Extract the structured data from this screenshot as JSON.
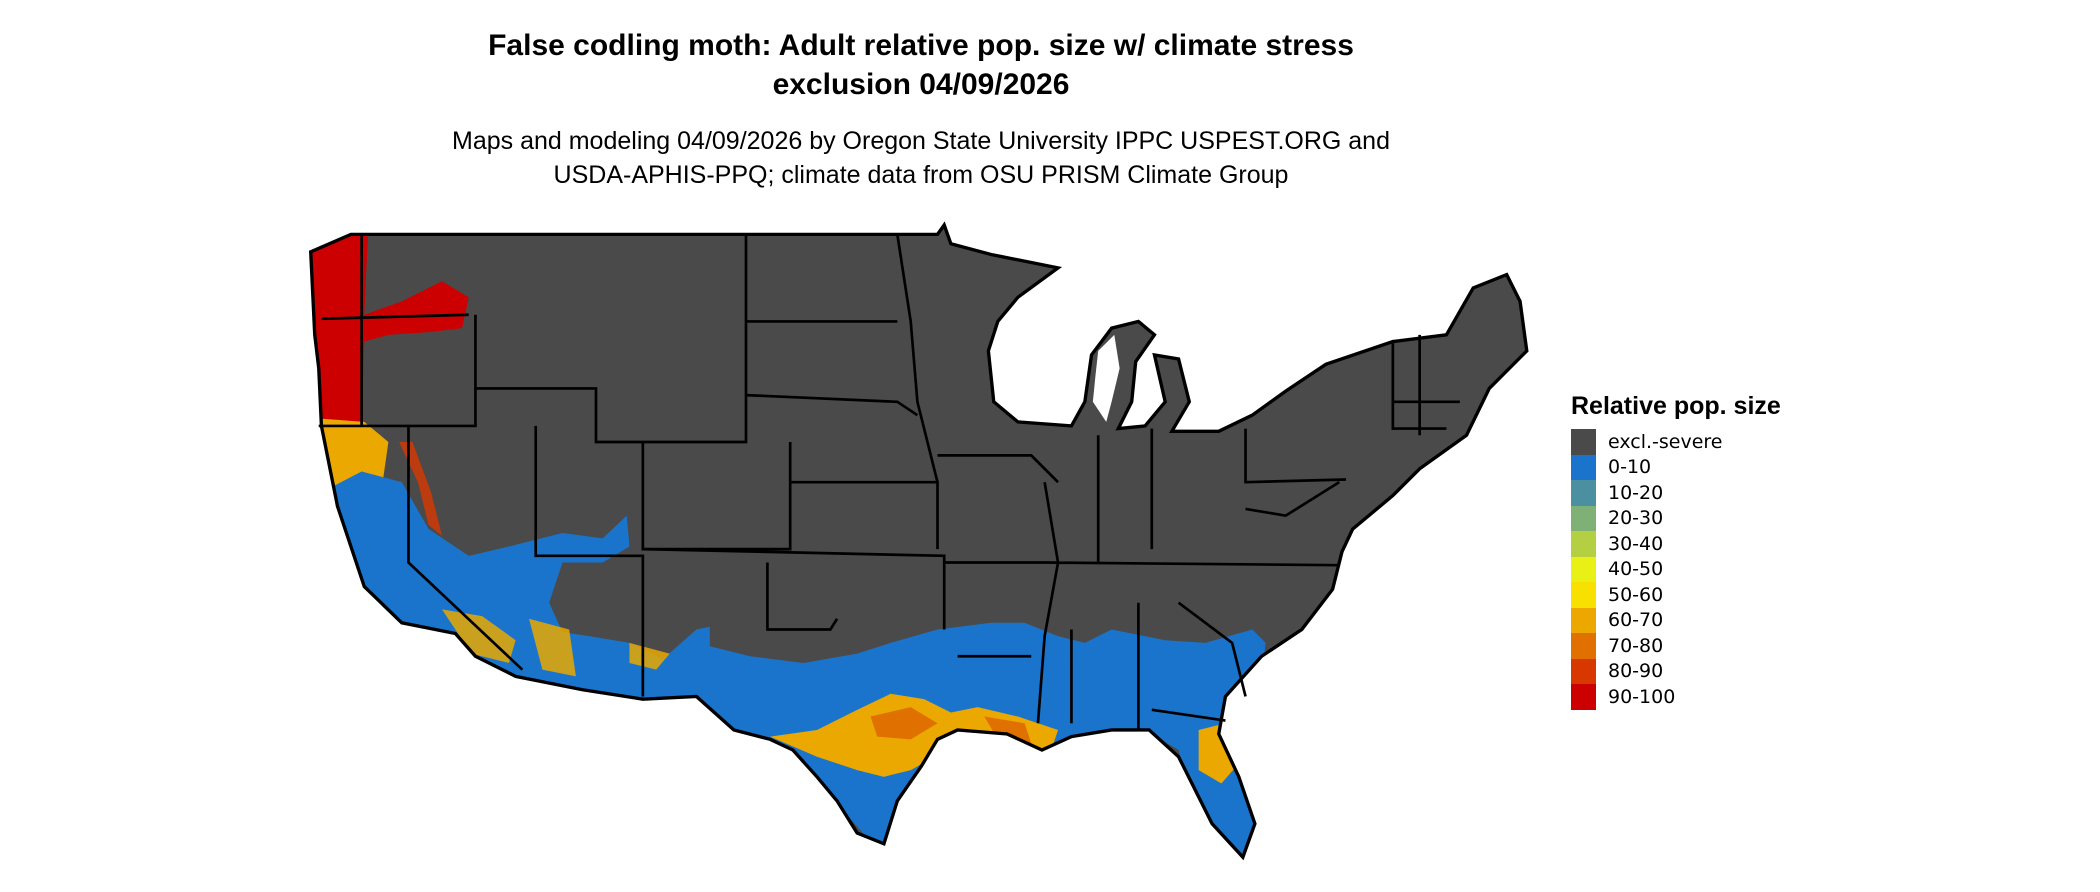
{
  "title": {
    "line1": "False codling moth: Adult relative pop. size w/ climate stress",
    "line2": "exclusion 04/09/2026"
  },
  "subtitle": {
    "line1": "Maps and modeling 04/09/2026 by Oregon State University IPPC USPEST.ORG and",
    "line2": "USDA-APHIS-PPQ; climate data from OSU PRISM Climate Group"
  },
  "map": {
    "region": "Contiguous United States",
    "colors": {
      "excluded": "#4a4a4a",
      "low": "#1a74cc",
      "high": "#cc0000",
      "mid": "#eaa800",
      "border": "#000000"
    }
  },
  "legend": {
    "title": "Relative pop. size",
    "items": [
      {
        "label": "excl.-severe",
        "color": "#4a4a4a"
      },
      {
        "label": "0-10",
        "color": "#1a74cc"
      },
      {
        "label": "10-20",
        "color": "#4a90a0"
      },
      {
        "label": "20-30",
        "color": "#7fb075"
      },
      {
        "label": "30-40",
        "color": "#b4d042"
      },
      {
        "label": "40-50",
        "color": "#e8f016"
      },
      {
        "label": "50-60",
        "color": "#f8e000"
      },
      {
        "label": "60-70",
        "color": "#eda800"
      },
      {
        "label": "70-80",
        "color": "#e07000"
      },
      {
        "label": "80-90",
        "color": "#d83800"
      },
      {
        "label": "90-100",
        "color": "#cc0000"
      }
    ]
  }
}
